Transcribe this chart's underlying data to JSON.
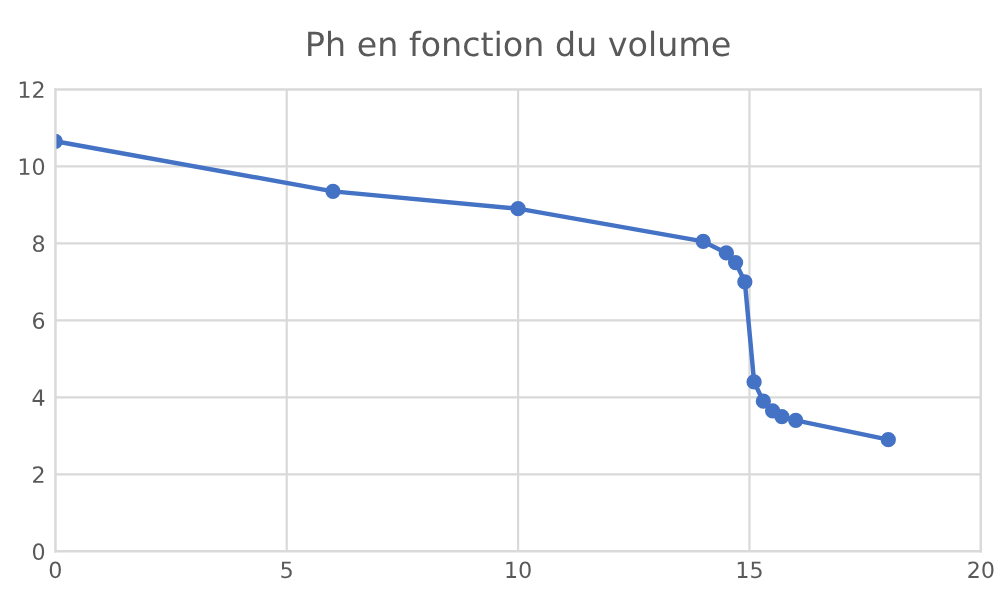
{
  "chart_data": {
    "type": "line",
    "title": "Ph en fonction du volume",
    "series": [
      {
        "color": "#4472c4",
        "x": [
          0,
          6,
          10,
          14,
          14.5,
          14.7,
          14.9,
          15.1,
          15.3,
          15.5,
          15.7,
          16,
          18
        ],
        "values": [
          10.65,
          9.35,
          8.9,
          8.05,
          7.75,
          7.5,
          7.0,
          4.4,
          3.9,
          3.65,
          3.5,
          3.4,
          2.9
        ]
      }
    ],
    "xlim": [
      0,
      20
    ],
    "xticks": [
      0,
      5,
      10,
      15,
      20
    ],
    "ylim": [
      0,
      12
    ],
    "yticks": [
      0,
      2,
      4,
      6,
      8,
      10,
      12
    ],
    "grid": true,
    "marker": "circle",
    "line_style": "solid"
  }
}
